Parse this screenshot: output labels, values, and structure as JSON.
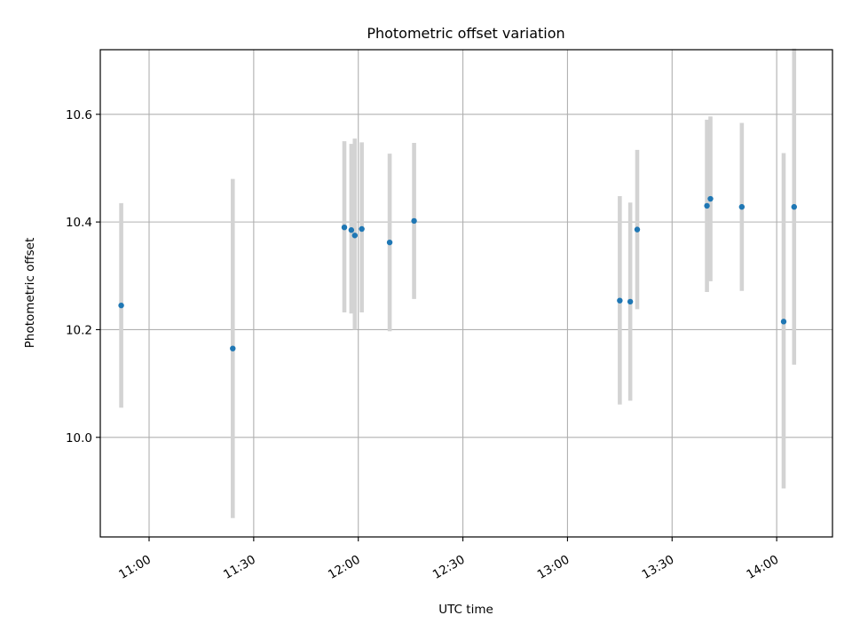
{
  "chart_data": {
    "type": "scatter",
    "title": "Photometric offset variation",
    "xlabel": "UTC time",
    "ylabel": "Photometric offset",
    "x_ticks": [
      "11:00",
      "11:30",
      "12:00",
      "12:30",
      "13:00",
      "13:30",
      "14:00"
    ],
    "y_ticks": [
      "10.0",
      "10.2",
      "10.4",
      "10.6"
    ],
    "xlim": [
      "10:46",
      "14:16"
    ],
    "ylim": [
      9.815,
      10.72
    ],
    "grid": true,
    "points": [
      {
        "x": "10:52",
        "y": 10.245,
        "err_low": 10.055,
        "err_high": 10.435
      },
      {
        "x": "11:24",
        "y": 10.165,
        "err_low": 9.85,
        "err_high": 10.48
      },
      {
        "x": "11:56",
        "y": 10.39,
        "err_low": 10.232,
        "err_high": 10.55
      },
      {
        "x": "11:58",
        "y": 10.385,
        "err_low": 10.23,
        "err_high": 10.545
      },
      {
        "x": "11:59",
        "y": 10.375,
        "err_low": 10.2,
        "err_high": 10.555
      },
      {
        "x": "12:01",
        "y": 10.387,
        "err_low": 10.232,
        "err_high": 10.548
      },
      {
        "x": "12:09",
        "y": 10.362,
        "err_low": 10.197,
        "err_high": 10.527
      },
      {
        "x": "12:16",
        "y": 10.402,
        "err_low": 10.257,
        "err_high": 10.547
      },
      {
        "x": "13:15",
        "y": 10.254,
        "err_low": 10.061,
        "err_high": 10.448
      },
      {
        "x": "13:18",
        "y": 10.252,
        "err_low": 10.068,
        "err_high": 10.436
      },
      {
        "x": "13:20",
        "y": 10.386,
        "err_low": 10.238,
        "err_high": 10.534
      },
      {
        "x": "13:40",
        "y": 10.43,
        "err_low": 10.27,
        "err_high": 10.59
      },
      {
        "x": "13:41",
        "y": 10.443,
        "err_low": 10.29,
        "err_high": 10.596
      },
      {
        "x": "13:50",
        "y": 10.428,
        "err_low": 10.272,
        "err_high": 10.584
      },
      {
        "x": "14:02",
        "y": 10.215,
        "err_low": 9.905,
        "err_high": 10.528
      },
      {
        "x": "14:05",
        "y": 10.428,
        "err_low": 10.135,
        "err_high": 10.722
      }
    ],
    "colors": {
      "point": "#1f77b4",
      "errorbar": "#d3d3d3",
      "grid": "#b0b0b0",
      "axes": "#000000"
    }
  }
}
